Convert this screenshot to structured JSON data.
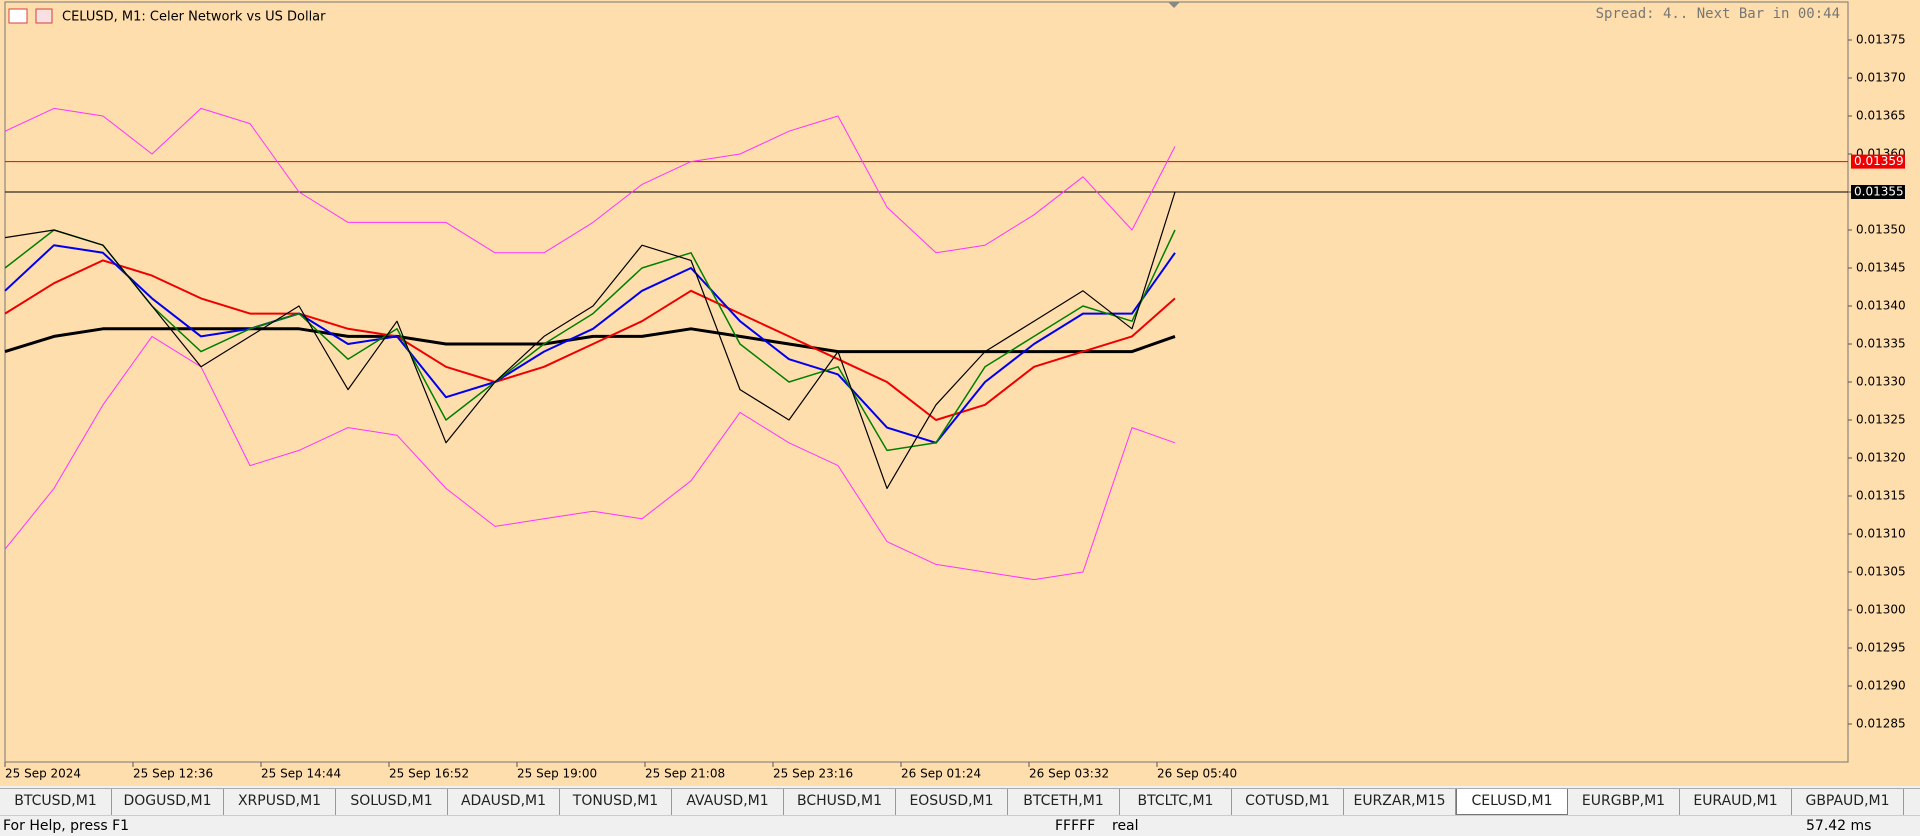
{
  "header": {
    "title": "CELUSD, M1:  Celer Network vs US Dollar",
    "info": "Spread: 4.. Next Bar in 00:44"
  },
  "chart_data": {
    "type": "line",
    "background": "#ffdead",
    "xlim": [
      0,
      1843
    ],
    "xticks": [
      {
        "value": 0,
        "label": "25 Sep 2024"
      },
      {
        "value": 128,
        "label": "25 Sep 12:36"
      },
      {
        "value": 256,
        "label": "25 Sep 14:44"
      },
      {
        "value": 384,
        "label": "25 Sep 16:52"
      },
      {
        "value": 512,
        "label": "25 Sep 19:00"
      },
      {
        "value": 640,
        "label": "25 Sep 21:08"
      },
      {
        "value": 768,
        "label": "25 Sep 23:16"
      },
      {
        "value": 896,
        "label": "26 Sep 01:24"
      },
      {
        "value": 1024,
        "label": "26 Sep 03:32"
      },
      {
        "value": 1152,
        "label": "26 Sep 05:40"
      }
    ],
    "ylim": [
      0.0128,
      0.0138
    ],
    "yticks": [
      0.01285,
      {
        "value": 0.0129,
        "label": "0.01290"
      },
      0.01295,
      {
        "value": 0.013,
        "label": "0.01300"
      },
      0.01305,
      {
        "value": 0.0131,
        "label": "0.01310"
      },
      0.01315,
      {
        "value": 0.0132,
        "label": "0.01320"
      },
      0.01325,
      {
        "value": 0.0133,
        "label": "0.01330"
      },
      0.01335,
      {
        "value": 0.0134,
        "label": "0.01340"
      },
      0.01345,
      {
        "value": 0.0135,
        "label": "0.01350"
      },
      0.01355,
      {
        "value": 0.0136,
        "label": "0.01360"
      },
      0.01365,
      {
        "value": 0.0137,
        "label": "0.01370"
      },
      0.01375
    ],
    "x": [
      0,
      49,
      98,
      147,
      196,
      245,
      294,
      343,
      392,
      441,
      490,
      539,
      588,
      637,
      686,
      735,
      784,
      833,
      882,
      931,
      980,
      1029,
      1078,
      1127,
      1170
    ],
    "series": [
      {
        "color": "#ff33ff",
        "line_width": 1,
        "values": [
          0.01363,
          0.01366,
          0.01365,
          0.0136,
          0.01366,
          0.01364,
          0.01355,
          0.01351,
          0.01351,
          0.01351,
          0.01347,
          0.01347,
          0.01351,
          0.01356,
          0.01359,
          0.0136,
          0.01363,
          0.01365,
          0.01353,
          0.01347,
          0.01348,
          0.01352,
          0.01357,
          0.0135,
          0.01361
        ]
      },
      {
        "color": "#ff33ff",
        "line_width": 1,
        "values": [
          0.01308,
          0.01316,
          0.01327,
          0.01336,
          0.01332,
          0.01319,
          0.01321,
          0.01324,
          0.01323,
          0.01316,
          0.01311,
          0.01312,
          0.01313,
          0.01312,
          0.01317,
          0.01326,
          0.01322,
          0.01319,
          0.01309,
          0.01306,
          0.01305,
          0.01304,
          0.01305,
          0.01324,
          0.01322
        ]
      },
      {
        "color": "#000000",
        "line_width": 3,
        "values": [
          0.01334,
          0.01336,
          0.01337,
          0.01337,
          0.01337,
          0.01337,
          0.01337,
          0.01336,
          0.01336,
          0.01335,
          0.01335,
          0.01335,
          0.01336,
          0.01336,
          0.01337,
          0.01336,
          0.01335,
          0.01334,
          0.01334,
          0.01334,
          0.01334,
          0.01334,
          0.01334,
          0.01334,
          0.01336
        ]
      },
      {
        "color": "#ee0000",
        "line_width": 2,
        "values": [
          0.01339,
          0.01343,
          0.01346,
          0.01344,
          0.01341,
          0.01339,
          0.01339,
          0.01337,
          0.01336,
          0.01332,
          0.0133,
          0.01332,
          0.01335,
          0.01338,
          0.01342,
          0.01339,
          0.01336,
          0.01333,
          0.0133,
          0.01325,
          0.01327,
          0.01332,
          0.01334,
          0.01336,
          0.01341
        ]
      },
      {
        "color": "#0000ee",
        "line_width": 2,
        "values": [
          0.01342,
          0.01348,
          0.01347,
          0.01341,
          0.01336,
          0.01337,
          0.01339,
          0.01335,
          0.01336,
          0.01328,
          0.0133,
          0.01334,
          0.01337,
          0.01342,
          0.01345,
          0.01338,
          0.01333,
          0.01331,
          0.01324,
          0.01322,
          0.0133,
          0.01335,
          0.01339,
          0.01339,
          0.01347
        ]
      },
      {
        "color": "#008000",
        "line_width": 1.5,
        "values": [
          0.01345,
          0.0135,
          0.01348,
          0.0134,
          0.01334,
          0.01337,
          0.01339,
          0.01333,
          0.01337,
          0.01325,
          0.0133,
          0.01335,
          0.01339,
          0.01345,
          0.01347,
          0.01335,
          0.0133,
          0.01332,
          0.01321,
          0.01322,
          0.01332,
          0.01336,
          0.0134,
          0.01338,
          0.0135
        ]
      },
      {
        "color": "#000000",
        "line_width": 1.2,
        "values": [
          0.01349,
          0.0135,
          0.01348,
          0.0134,
          0.01332,
          0.01336,
          0.0134,
          0.01329,
          0.01338,
          0.01322,
          0.0133,
          0.01336,
          0.0134,
          0.01348,
          0.01346,
          0.01329,
          0.01325,
          0.01334,
          0.01316,
          0.01327,
          0.01334,
          0.01338,
          0.01342,
          0.01337,
          0.01355
        ]
      }
    ],
    "price_lines": [
      {
        "value": 0.01359,
        "color": "#ee0000"
      },
      {
        "value": 0.01355,
        "color": "#000000"
      }
    ]
  },
  "tabs": [
    "BTCUSD,M1",
    "DOGUSD,M1",
    "XRPUSD,M1",
    "SOLUSD,M1",
    "ADAUSD,M1",
    "TONUSD,M1",
    "AVAUSD,M1",
    "BCHUSD,M1",
    "EOSUSD,M1",
    "BTCETH,M1",
    "BTCLTC,M1",
    "COTUSD,M1",
    "EURZAR,M15",
    "CELUSD,M1",
    "EURGBP,M1",
    "EURAUD,M1",
    "GBPAUD,M1"
  ],
  "active_tab": 13,
  "status": {
    "help": "For Help, press F1",
    "profile": "FFFFF",
    "account": "real",
    "ping": "57.42 ms"
  }
}
